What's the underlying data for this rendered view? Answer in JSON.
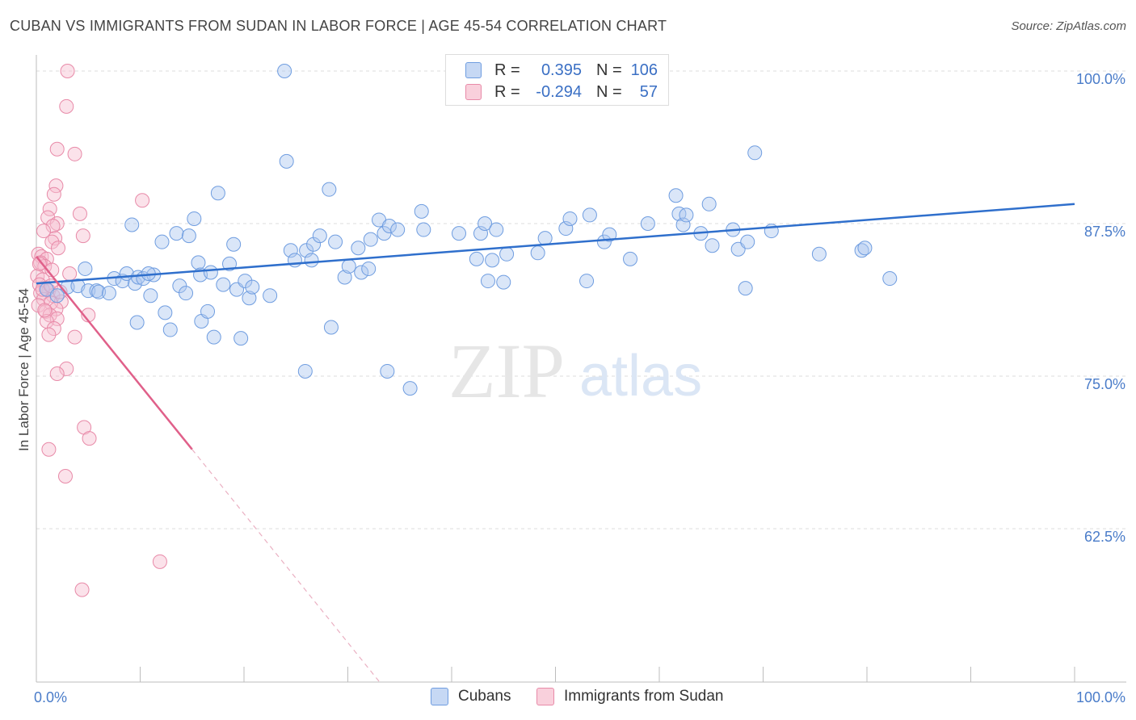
{
  "title": "CUBAN VS IMMIGRANTS FROM SUDAN IN LABOR FORCE | AGE 45-54 CORRELATION CHART",
  "source": "Source: ZipAtlas.com",
  "watermark": {
    "zip": "ZIP",
    "atlas": "atlas"
  },
  "legend": {
    "r_label": "R =",
    "n_label": "N =",
    "rows": [
      {
        "r": "0.395",
        "n": "106",
        "color": "#aec8f0",
        "border": "#6f9de0"
      },
      {
        "r": "-0.294",
        "n": "57",
        "color": "#f7bfd0",
        "border": "#e88aa8"
      }
    ]
  },
  "bottom_legend": [
    "Cubans",
    "Immigrants from Sudan"
  ],
  "chart_data": {
    "type": "scatter",
    "xlabel": "",
    "ylabel": "In Labor Force | Age 45-54",
    "xlim": [
      0,
      100
    ],
    "ylim": [
      50,
      103
    ],
    "x_tick_labels": [
      "0.0%",
      "100.0%"
    ],
    "y_ticks": [
      {
        "value": 100,
        "label": "100.0%"
      },
      {
        "value": 87.5,
        "label": "87.5%"
      },
      {
        "value": 75,
        "label": "75.0%"
      },
      {
        "value": 62.5,
        "label": "62.5%"
      }
    ],
    "colors": {
      "blue": "#6f9de0",
      "blue_fill": "#aec8f0",
      "blue_line": "#2f6fcc",
      "pink": "#e88aa8",
      "pink_fill": "#f7bfd0",
      "pink_line": "#e0608a"
    },
    "series": [
      {
        "name": "Cubans",
        "trend": {
          "x": [
            0,
            100
          ],
          "y": [
            82.6,
            89.1
          ]
        },
        "points": [
          [
            1,
            82.1
          ],
          [
            2,
            81.6
          ],
          [
            3,
            82.3
          ],
          [
            4,
            82.4
          ],
          [
            4.7,
            83.8
          ],
          [
            5,
            82.0
          ],
          [
            5.8,
            82.0
          ],
          [
            6,
            81.9
          ],
          [
            7,
            81.8
          ],
          [
            7.5,
            83.0
          ],
          [
            8.3,
            82.8
          ],
          [
            8.7,
            83.4
          ],
          [
            9.5,
            82.6
          ],
          [
            9.8,
            83.1
          ],
          [
            10.3,
            83.0
          ],
          [
            11.3,
            83.3
          ],
          [
            9.2,
            87.4
          ],
          [
            11.0,
            81.6
          ],
          [
            9.7,
            79.4
          ],
          [
            10.8,
            83.4
          ],
          [
            12.1,
            86.0
          ],
          [
            12.4,
            80.2
          ],
          [
            12.9,
            78.8
          ],
          [
            13.5,
            86.7
          ],
          [
            13.8,
            82.4
          ],
          [
            14.4,
            81.8
          ],
          [
            14.7,
            86.5
          ],
          [
            15.2,
            87.9
          ],
          [
            15.6,
            84.3
          ],
          [
            15.8,
            83.3
          ],
          [
            15.9,
            79.5
          ],
          [
            16.5,
            80.3
          ],
          [
            16.8,
            83.5
          ],
          [
            17.1,
            78.2
          ],
          [
            17.5,
            90.0
          ],
          [
            18.0,
            82.5
          ],
          [
            18.6,
            84.2
          ],
          [
            19.0,
            85.8
          ],
          [
            19.3,
            82.1
          ],
          [
            19.7,
            78.1
          ],
          [
            20.1,
            82.8
          ],
          [
            20.5,
            81.4
          ],
          [
            20.8,
            82.3
          ],
          [
            22.5,
            81.6
          ],
          [
            23.9,
            100
          ],
          [
            24.1,
            92.6
          ],
          [
            24.5,
            85.3
          ],
          [
            24.9,
            84.5
          ],
          [
            25.9,
            75.4
          ],
          [
            26.0,
            85.3
          ],
          [
            26.7,
            85.8
          ],
          [
            27.3,
            86.5
          ],
          [
            28.2,
            90.3
          ],
          [
            28.4,
            79.0
          ],
          [
            28.8,
            86.0
          ],
          [
            29.7,
            83.1
          ],
          [
            30.1,
            84.0
          ],
          [
            31.0,
            85.5
          ],
          [
            31.3,
            83.5
          ],
          [
            32.0,
            83.8
          ],
          [
            32.2,
            86.2
          ],
          [
            33.0,
            87.8
          ],
          [
            33.5,
            86.7
          ],
          [
            34.0,
            87.3
          ],
          [
            34.8,
            87.0
          ],
          [
            36.0,
            74.0
          ],
          [
            37.1,
            88.5
          ],
          [
            37.3,
            87.0
          ],
          [
            40.7,
            86.7
          ],
          [
            42.4,
            84.6
          ],
          [
            42.8,
            86.7
          ],
          [
            43.2,
            87.5
          ],
          [
            43.5,
            82.8
          ],
          [
            43.9,
            84.5
          ],
          [
            44.3,
            87.0
          ],
          [
            45.0,
            82.7
          ],
          [
            45.3,
            85.0
          ],
          [
            48.3,
            85.1
          ],
          [
            49.0,
            86.3
          ],
          [
            51.0,
            87.1
          ],
          [
            51.4,
            87.9
          ],
          [
            53.0,
            82.8
          ],
          [
            53.3,
            88.2
          ],
          [
            54.7,
            86.0
          ],
          [
            55.2,
            86.6
          ],
          [
            57.2,
            84.6
          ],
          [
            58.9,
            87.5
          ],
          [
            61.6,
            89.8
          ],
          [
            61.9,
            88.3
          ],
          [
            62.3,
            87.4
          ],
          [
            62.6,
            88.2
          ],
          [
            64.0,
            86.7
          ],
          [
            64.8,
            89.1
          ],
          [
            65.1,
            85.7
          ],
          [
            67.1,
            87.0
          ],
          [
            67.6,
            85.4
          ],
          [
            68.3,
            82.2
          ],
          [
            68.5,
            86.0
          ],
          [
            69.2,
            93.3
          ],
          [
            70.8,
            86.9
          ],
          [
            75.4,
            85.0
          ],
          [
            79.5,
            85.3
          ],
          [
            79.8,
            85.5
          ],
          [
            82.2,
            83.0
          ],
          [
            33.8,
            75.4
          ],
          [
            26.5,
            84.5
          ]
        ]
      },
      {
        "name": "Immigrants from Sudan",
        "trend": {
          "x": [
            0,
            15
          ],
          "y": [
            84.8,
            69.0
          ]
        },
        "trend_dashed": {
          "x": [
            15,
            33
          ],
          "y": [
            69.0,
            50.0
          ]
        },
        "points": [
          [
            3.0,
            100
          ],
          [
            2.9,
            97.1
          ],
          [
            2.0,
            93.6
          ],
          [
            3.7,
            93.2
          ],
          [
            1.9,
            90.6
          ],
          [
            1.7,
            89.9
          ],
          [
            10.2,
            89.4
          ],
          [
            1.3,
            88.7
          ],
          [
            4.2,
            88.3
          ],
          [
            1.1,
            88.0
          ],
          [
            2.0,
            87.5
          ],
          [
            1.6,
            87.3
          ],
          [
            0.7,
            86.9
          ],
          [
            4.5,
            86.5
          ],
          [
            1.8,
            86.3
          ],
          [
            1.5,
            86.0
          ],
          [
            2.1,
            85.5
          ],
          [
            0.2,
            85.0
          ],
          [
            0.5,
            84.8
          ],
          [
            1.0,
            84.6
          ],
          [
            0.4,
            84.3
          ],
          [
            0.8,
            84.0
          ],
          [
            3.2,
            83.4
          ],
          [
            0.1,
            83.2
          ],
          [
            0.6,
            82.9
          ],
          [
            0.3,
            82.5
          ],
          [
            0.9,
            82.2
          ],
          [
            1.2,
            82.0
          ],
          [
            0.4,
            81.8
          ],
          [
            1.6,
            81.6
          ],
          [
            0.7,
            81.3
          ],
          [
            2.4,
            81.1
          ],
          [
            1.4,
            81.0
          ],
          [
            0.2,
            80.8
          ],
          [
            1.9,
            80.5
          ],
          [
            0.9,
            80.3
          ],
          [
            1.3,
            80.0
          ],
          [
            5.0,
            80.0
          ],
          [
            2.0,
            79.7
          ],
          [
            1.0,
            79.5
          ],
          [
            1.7,
            78.9
          ],
          [
            1.2,
            78.4
          ],
          [
            3.7,
            78.2
          ],
          [
            2.9,
            75.6
          ],
          [
            2.0,
            75.2
          ],
          [
            4.6,
            70.8
          ],
          [
            5.1,
            69.9
          ],
          [
            1.2,
            69.0
          ],
          [
            2.8,
            66.8
          ],
          [
            11.9,
            59.8
          ],
          [
            4.4,
            57.5
          ],
          [
            0.6,
            82.1
          ],
          [
            1.4,
            82.4
          ],
          [
            2.3,
            81.9
          ],
          [
            0.3,
            84.2
          ],
          [
            0.8,
            80.4
          ],
          [
            1.5,
            83.7
          ]
        ]
      }
    ]
  }
}
